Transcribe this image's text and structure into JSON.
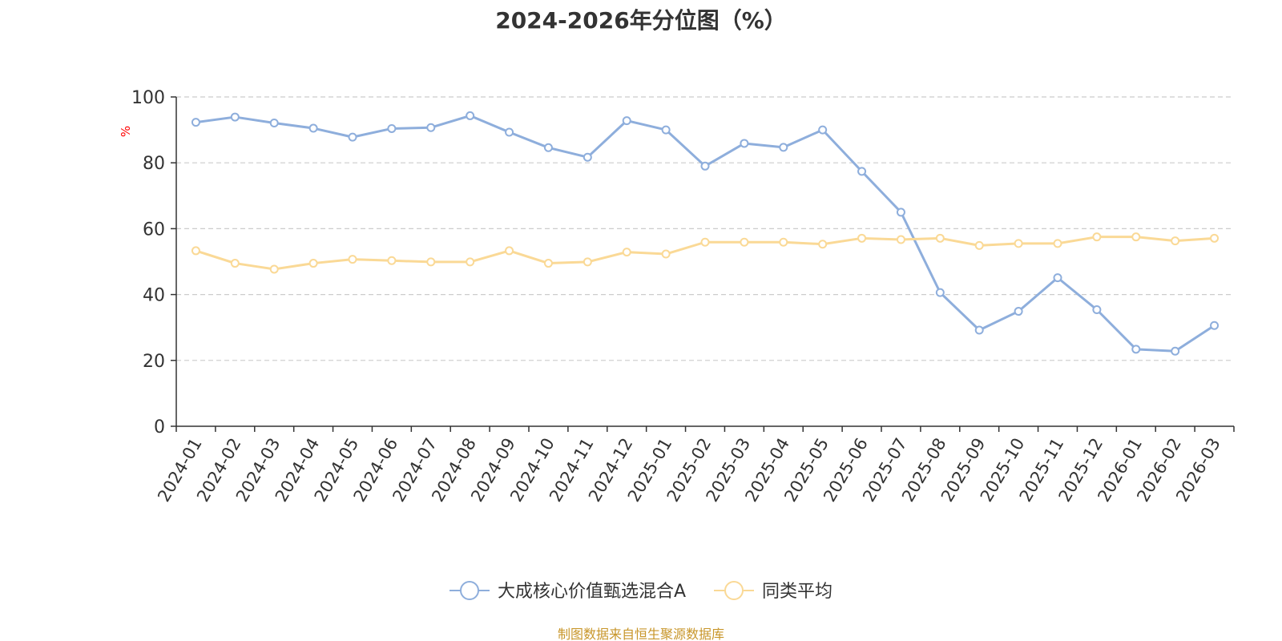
{
  "title": "2024-2026年分位图（%）",
  "source_note": "制图数据来自恒生聚源数据库",
  "colors": {
    "series_main": "#8eaedc",
    "series_avg": "#fad996",
    "grid": "#cccccc",
    "axis": "#333333",
    "unit_label": "#ff0000",
    "title": "#333333",
    "source_note": "#c8962a"
  },
  "chart_data": {
    "type": "line",
    "title": "2024-2026年分位图（%）",
    "ylabel": "%",
    "xlabel": "",
    "ylim": [
      0,
      100
    ],
    "yticks": [
      0,
      20,
      40,
      60,
      80,
      100
    ],
    "grid": true,
    "legend_position": "bottom-center",
    "categories": [
      "2024-01",
      "2024-02",
      "2024-03",
      "2024-04",
      "2024-05",
      "2024-06",
      "2024-07",
      "2024-08",
      "2024-09",
      "2024-10",
      "2024-11",
      "2024-12",
      "2025-01",
      "2025-02",
      "2025-03",
      "2025-04",
      "2025-05",
      "2025-06",
      "2025-07",
      "2025-08",
      "2025-09",
      "2025-10",
      "2025-11",
      "2025-12",
      "2026-01",
      "2026-02",
      "2026-03"
    ],
    "series": [
      {
        "name": "大成核心价值甄选混合A",
        "color": "#8eaedc",
        "values": [
          92.3,
          93.9,
          92.1,
          90.5,
          87.8,
          90.4,
          90.7,
          94.3,
          89.3,
          84.6,
          81.7,
          92.8,
          90.0,
          79.0,
          85.9,
          84.7,
          90.0,
          77.4,
          65.0,
          40.6,
          29.2,
          34.9,
          45.1,
          35.4,
          23.4,
          22.8,
          30.6
        ]
      },
      {
        "name": "同类平均",
        "color": "#fad996",
        "values": [
          53.3,
          49.5,
          47.7,
          49.5,
          50.7,
          50.3,
          49.9,
          49.9,
          53.3,
          49.5,
          49.9,
          52.9,
          52.3,
          55.9,
          55.9,
          55.9,
          55.3,
          57.1,
          56.7,
          57.1,
          54.9,
          55.5,
          55.5,
          57.5,
          57.5,
          56.3,
          57.1
        ]
      }
    ]
  }
}
